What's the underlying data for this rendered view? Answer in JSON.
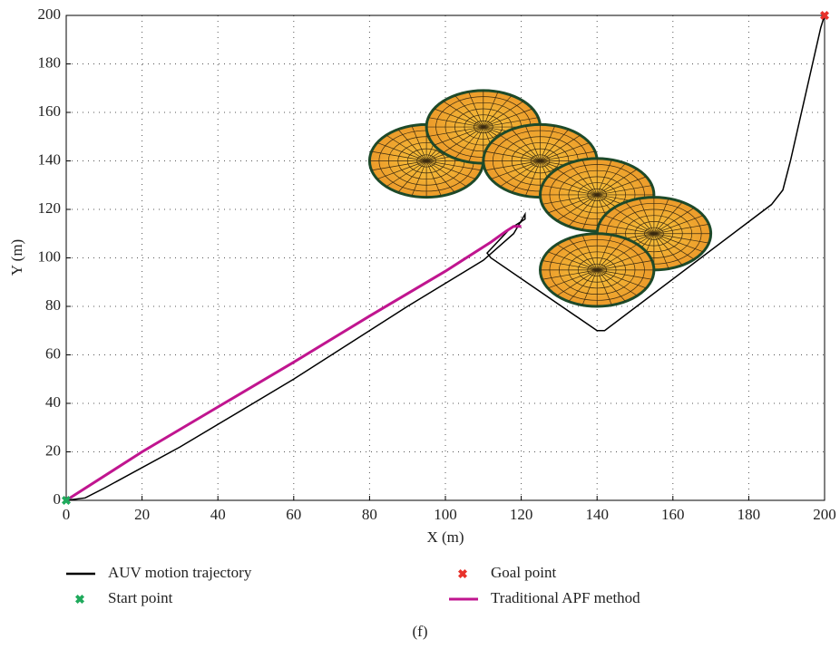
{
  "chart_data": {
    "type": "line",
    "xlabel": "X (m)",
    "ylabel": "Y (m)",
    "caption": "(f)",
    "xlim": [
      0,
      200
    ],
    "ylim": [
      0,
      200
    ],
    "xticks": [
      0,
      20,
      40,
      60,
      80,
      100,
      120,
      140,
      160,
      180,
      200
    ],
    "yticks": [
      0,
      20,
      40,
      60,
      80,
      100,
      120,
      140,
      160,
      180,
      200
    ],
    "grid": true,
    "series": [
      {
        "name": "AUV motion trajectory",
        "color": "#000000",
        "x": [
          0,
          5,
          10,
          30,
          60,
          90,
          110,
          118,
          121,
          121,
          117,
          111,
          112,
          140,
          142,
          186,
          189,
          191,
          199,
          200
        ],
        "values": [
          0,
          1,
          5,
          22,
          50,
          80,
          99,
          110,
          118,
          116,
          112,
          102,
          100,
          70,
          70,
          122,
          128,
          140,
          195,
          200
        ]
      },
      {
        "name": "Traditional APF method",
        "color": "#c0158f",
        "x": [
          0,
          20,
          40,
          60,
          80,
          100,
          112,
          116,
          118,
          120
        ],
        "values": [
          0,
          20,
          38.5,
          57,
          76,
          94.5,
          106.5,
          111,
          113,
          113
        ]
      }
    ],
    "points": [
      {
        "name": "Start point",
        "x": 0,
        "y": 0,
        "color": "#1faa5c"
      },
      {
        "name": "Goal point",
        "x": 200,
        "y": 200,
        "color": "#e8322b"
      }
    ],
    "obstacles": [
      {
        "x": 95,
        "y": 140,
        "r": 15
      },
      {
        "x": 110,
        "y": 154,
        "r": 15
      },
      {
        "x": 125,
        "y": 140,
        "r": 15
      },
      {
        "x": 140,
        "y": 126,
        "r": 15
      },
      {
        "x": 155,
        "y": 110,
        "r": 15
      },
      {
        "x": 140,
        "y": 95,
        "r": 15
      }
    ]
  }
}
